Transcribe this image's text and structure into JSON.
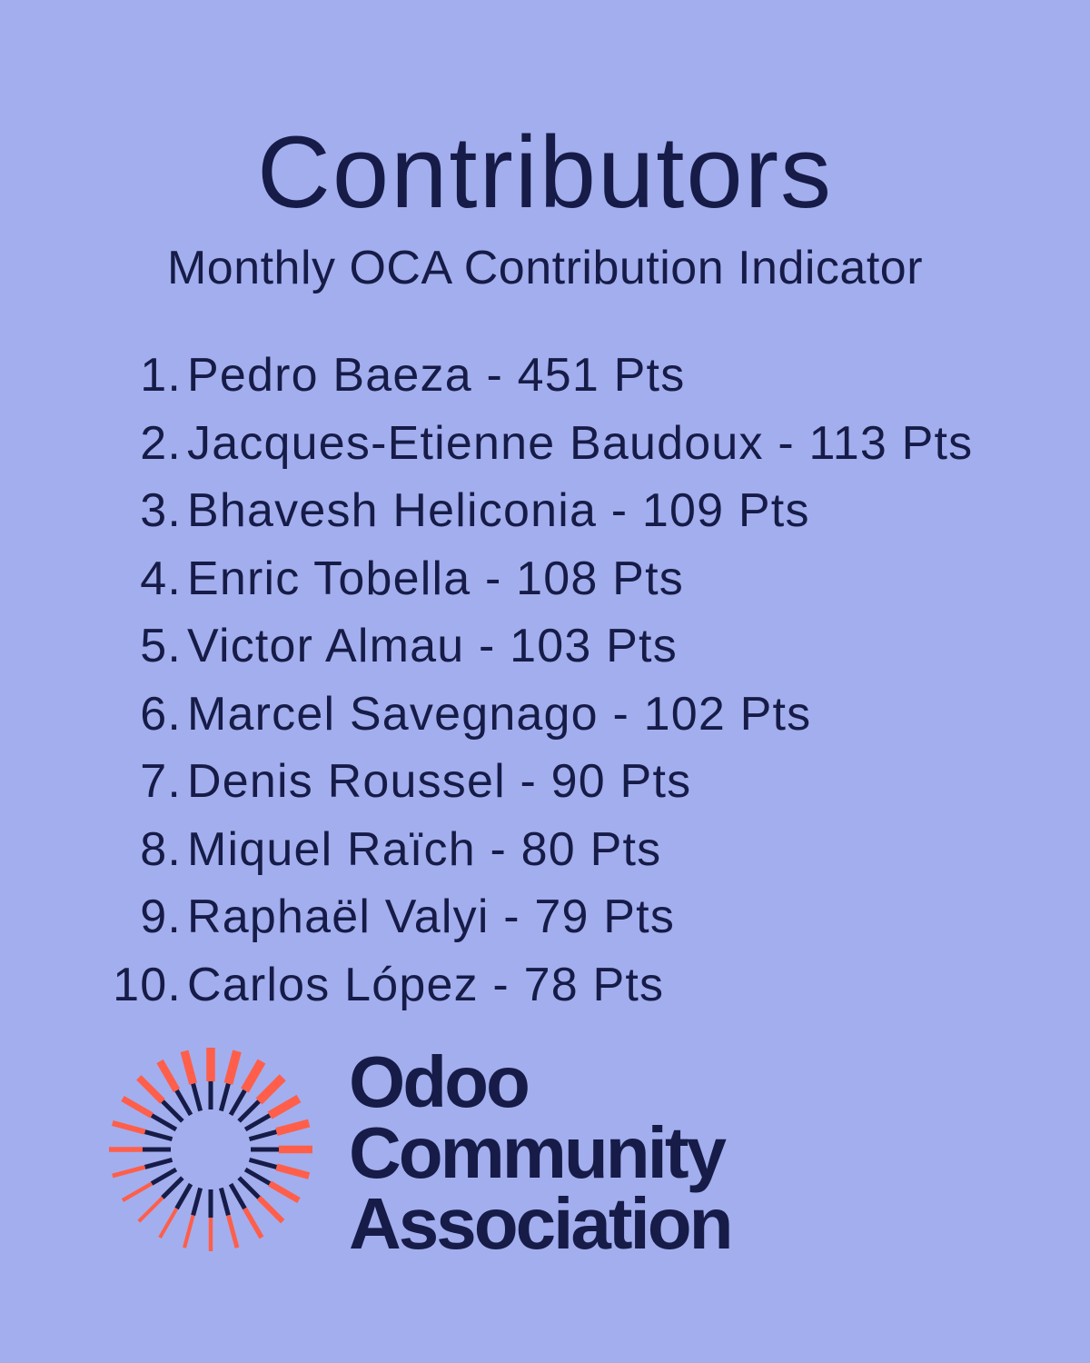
{
  "header": {
    "title": "Contributors",
    "subtitle": "Monthly OCA Contribution Indicator"
  },
  "ranking": [
    {
      "rank": "1.",
      "entry": "Pedro Baeza - 451 Pts"
    },
    {
      "rank": "2.",
      "entry": "Jacques-Etienne Baudoux - 113 Pts"
    },
    {
      "rank": "3.",
      "entry": "Bhavesh Heliconia - 109 Pts"
    },
    {
      "rank": "4.",
      "entry": "Enric Tobella - 108 Pts"
    },
    {
      "rank": "5.",
      "entry": "Victor Almau - 103 Pts"
    },
    {
      "rank": "6.",
      "entry": "Marcel Savegnago - 102 Pts"
    },
    {
      "rank": "7.",
      "entry": "Denis Roussel - 90 Pts"
    },
    {
      "rank": "8.",
      "entry": "Miquel Raïch - 80 Pts"
    },
    {
      "rank": "9.",
      "entry": "Raphaël Valyi - 79 Pts"
    },
    {
      "rank": "10.",
      "entry": "Carlos López - 78 Pts"
    }
  ],
  "logo": {
    "line1": "Odoo",
    "line2": "Community",
    "line3": "Association",
    "icon": "sunburst-logo-icon"
  },
  "colors": {
    "background": "#a3aeee",
    "text": "#161c47",
    "accent": "#ff5f4a"
  }
}
